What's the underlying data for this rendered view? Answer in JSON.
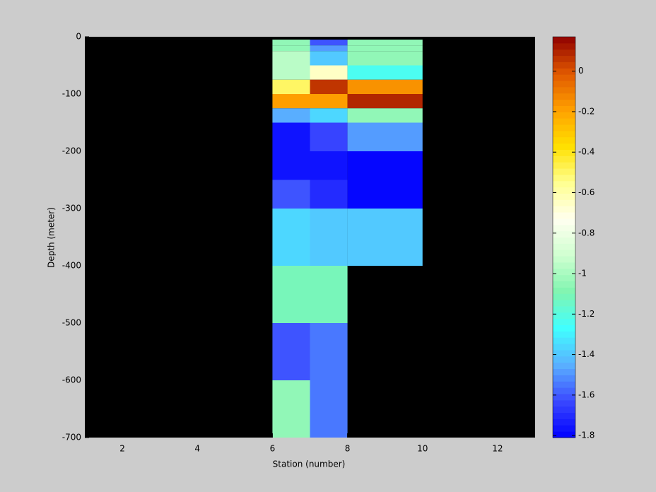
{
  "chart_data": {
    "type": "heatmap",
    "xlabel": "Station (number)",
    "ylabel": "Depth (meter)",
    "xlim": [
      1,
      13
    ],
    "xticks": [
      2,
      4,
      6,
      8,
      10,
      12
    ],
    "ylim": [
      -700,
      0
    ],
    "yticks": [
      0,
      -100,
      -200,
      -300,
      -400,
      -500,
      -600,
      -700
    ],
    "x_edges": [
      6,
      7,
      8,
      10
    ],
    "y_edges": [
      -5,
      -15,
      -25,
      -50,
      -75,
      -100,
      -125,
      -150,
      -200,
      -250,
      -300,
      -400,
      -500,
      -600,
      -700
    ],
    "values": [
      [
        -1.05,
        -1.6,
        -1.05
      ],
      [
        -1.05,
        -1.5,
        -1.05
      ],
      [
        -0.95,
        -1.4,
        -1.05
      ],
      [
        -0.95,
        -0.65,
        -1.25
      ],
      [
        -0.5,
        0.05,
        -0.15
      ],
      [
        -0.2,
        -0.2,
        0.1
      ],
      [
        -1.45,
        -1.35,
        -1.05
      ],
      [
        -1.75,
        -1.65,
        -1.5
      ],
      [
        -1.75,
        -1.75,
        -1.8
      ],
      [
        -1.6,
        -1.7,
        -1.8
      ],
      [
        -1.35,
        -1.4,
        -1.4
      ],
      [
        -1.1,
        -1.1,
        null
      ],
      [
        -1.6,
        -1.55,
        null
      ],
      [
        -1.05,
        -1.55,
        null
      ]
    ],
    "missing_color": "#000000",
    "clim": [
      -1.81,
      0.17
    ],
    "colorbar_ticks": [
      0,
      -0.2,
      -0.4,
      -0.6,
      -0.8,
      -1,
      -1.2,
      -1.4,
      -1.6,
      -1.8
    ],
    "colormap": [
      "#0000ff",
      "#3a48ff",
      "#5ab0ff",
      "#40ffff",
      "#80f5b0",
      "#d0ffd0",
      "#fffff0",
      "#ffff90",
      "#ffe000",
      "#ffa000",
      "#e05800",
      "#900000"
    ],
    "colormap_levels": 64
  }
}
